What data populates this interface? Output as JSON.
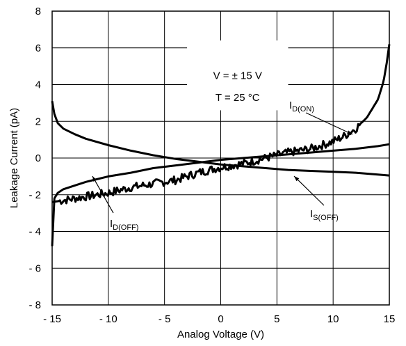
{
  "chart_data": {
    "type": "line",
    "xlabel": "Analog Voltage (V)",
    "ylabel": "Leakage Current (pA)",
    "xlim": [
      -15,
      15
    ],
    "ylim": [
      -8,
      8
    ],
    "x_ticks": [
      -15,
      -10,
      -5,
      0,
      5,
      10,
      15
    ],
    "x_tick_labels": [
      "- 15",
      "- 10",
      "- 5",
      "0",
      "5",
      "10",
      "15"
    ],
    "y_ticks": [
      -8,
      -6,
      -4,
      -2,
      0,
      2,
      4,
      6,
      8
    ],
    "y_tick_labels": [
      "- 8",
      "- 6",
      "- 4",
      "- 2",
      "0",
      "2",
      "4",
      "6",
      "8"
    ],
    "grid": true,
    "conditions": [
      "V = ± 15 V",
      "T = 25 °C"
    ],
    "series": [
      {
        "name": "I_D(ON)",
        "label_main": "I",
        "label_sub": "D(ON)",
        "x": [
          -15,
          -14,
          -12,
          -10,
          -8,
          -6,
          -4,
          -2,
          0,
          2,
          4,
          6,
          8,
          10,
          11,
          12,
          13,
          14,
          14.5,
          14.8,
          15
        ],
        "y": [
          -2.4,
          -2.3,
          -2.1,
          -1.9,
          -1.6,
          -1.4,
          -1.2,
          -0.8,
          -0.5,
          -0.3,
          0.0,
          0.3,
          0.5,
          0.9,
          1.2,
          1.6,
          2.2,
          3.2,
          4.2,
          5.3,
          6.2
        ]
      },
      {
        "name": "I_S(OFF)",
        "label_main": "I",
        "label_sub": "S(OFF)",
        "x": [
          -15,
          -14.8,
          -14.5,
          -14,
          -13,
          -12,
          -10,
          -8,
          -6,
          -4,
          -2,
          0,
          2,
          4,
          6,
          8,
          10,
          12,
          14,
          15
        ],
        "y": [
          3.1,
          2.4,
          1.9,
          1.6,
          1.3,
          1.05,
          0.7,
          0.4,
          0.15,
          -0.05,
          -0.2,
          -0.35,
          -0.45,
          -0.55,
          -0.65,
          -0.7,
          -0.75,
          -0.8,
          -0.9,
          -0.95
        ]
      },
      {
        "name": "I_D(OFF)",
        "label_main": "I",
        "label_sub": "D(OFF)",
        "x": [
          -15,
          -14.8,
          -14.5,
          -14,
          -13,
          -12,
          -10,
          -8,
          -6,
          -4,
          -2,
          0,
          2,
          4,
          6,
          8,
          10,
          12,
          14,
          15
        ],
        "y": [
          -4.8,
          -2.2,
          -1.9,
          -1.7,
          -1.5,
          -1.3,
          -1.0,
          -0.8,
          -0.55,
          -0.4,
          -0.25,
          -0.1,
          0.0,
          0.1,
          0.2,
          0.3,
          0.4,
          0.5,
          0.65,
          0.75
        ]
      }
    ]
  }
}
